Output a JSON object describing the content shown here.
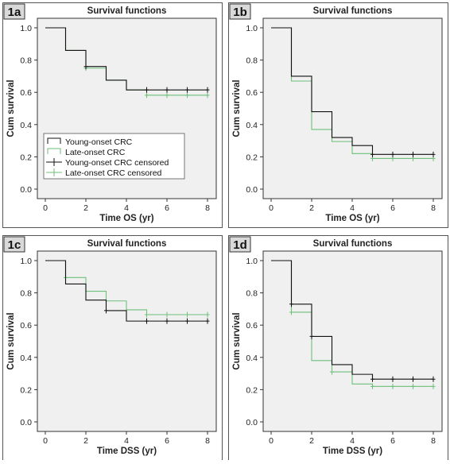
{
  "chart_data": [
    {
      "type": "line",
      "panel_label": "1a",
      "title": "Survival functions",
      "xlabel": "Time OS (yr)",
      "ylabel": "Cum survival",
      "xlim": [
        0,
        8
      ],
      "ylim": [
        0,
        1.0
      ],
      "x_ticks": [
        "0",
        "2",
        "4",
        "6",
        "8"
      ],
      "y_ticks": [
        "0.0",
        "0.2",
        "0.4",
        "0.6",
        "0.8",
        "1.0"
      ],
      "grid": false,
      "legend": {
        "placement": "bottom-left",
        "entries": [
          "Young-onset CRC",
          "Late-onset CRC",
          "Young-onset CRC censored",
          "Late-onset CRC censored"
        ]
      },
      "series": [
        {
          "name": "Young-onset CRC",
          "color": "#111111",
          "steps": [
            [
              0,
              1.0
            ],
            [
              1,
              0.86
            ],
            [
              2,
              0.76
            ],
            [
              3,
              0.675
            ],
            [
              4,
              0.615
            ]
          ],
          "end_x": 8,
          "censored": [
            [
              2,
              0.76
            ],
            [
              5,
              0.615
            ],
            [
              6,
              0.615
            ],
            [
              7,
              0.615
            ],
            [
              8,
              0.615
            ]
          ]
        },
        {
          "name": "Late-onset CRC",
          "color": "#6cc07a",
          "steps": [
            [
              0,
              1.0
            ],
            [
              1,
              0.86
            ],
            [
              2,
              0.75
            ],
            [
              3,
              0.675
            ],
            [
              4,
              0.615
            ],
            [
              5,
              0.582
            ]
          ],
          "end_x": 8,
          "censored": [
            [
              2,
              0.75
            ],
            [
              5,
              0.582
            ],
            [
              6,
              0.582
            ],
            [
              7,
              0.582
            ],
            [
              8,
              0.582
            ]
          ]
        }
      ]
    },
    {
      "type": "line",
      "panel_label": "1b",
      "title": "Survival functions",
      "xlabel": "Time OS (yr)",
      "ylabel": "Cum survival",
      "xlim": [
        0,
        8
      ],
      "ylim": [
        0,
        1.0
      ],
      "x_ticks": [
        "0",
        "2",
        "4",
        "6",
        "8"
      ],
      "y_ticks": [
        "0.0",
        "0.2",
        "0.4",
        "0.6",
        "0.8",
        "1.0"
      ],
      "grid": false,
      "series": [
        {
          "name": "Young-onset CRC",
          "color": "#111111",
          "steps": [
            [
              0,
              1.0
            ],
            [
              1,
              0.7
            ],
            [
              2,
              0.48
            ],
            [
              3,
              0.32
            ],
            [
              4,
              0.27
            ],
            [
              5,
              0.215
            ]
          ],
          "end_x": 8,
          "censored": [
            [
              5,
              0.215
            ],
            [
              6,
              0.215
            ],
            [
              7,
              0.215
            ],
            [
              8,
              0.215
            ]
          ]
        },
        {
          "name": "Late-onset CRC",
          "color": "#6cc07a",
          "steps": [
            [
              0,
              1.0
            ],
            [
              1,
              0.67
            ],
            [
              2,
              0.37
            ],
            [
              3,
              0.295
            ],
            [
              4,
              0.22
            ],
            [
              5,
              0.19
            ]
          ],
          "end_x": 8,
          "censored": [
            [
              5,
              0.19
            ],
            [
              6,
              0.19
            ],
            [
              7,
              0.19
            ],
            [
              8,
              0.19
            ]
          ]
        }
      ]
    },
    {
      "type": "line",
      "panel_label": "1c",
      "title": "Survival functions",
      "xlabel": "Time DSS (yr)",
      "ylabel": "Cum survival",
      "xlim": [
        0,
        8
      ],
      "ylim": [
        0,
        1.0
      ],
      "x_ticks": [
        "0",
        "2",
        "4",
        "6",
        "8"
      ],
      "y_ticks": [
        "0.0",
        "0.2",
        "0.4",
        "0.6",
        "0.8",
        "1.0"
      ],
      "grid": false,
      "series": [
        {
          "name": "Young-onset CRC",
          "color": "#111111",
          "steps": [
            [
              0,
              1.0
            ],
            [
              1,
              0.855
            ],
            [
              2,
              0.755
            ],
            [
              3,
              0.69
            ],
            [
              4,
              0.625
            ]
          ],
          "end_x": 8,
          "censored": [
            [
              3,
              0.69
            ],
            [
              5,
              0.625
            ],
            [
              6,
              0.625
            ],
            [
              7,
              0.625
            ],
            [
              8,
              0.625
            ]
          ]
        },
        {
          "name": "Late-onset CRC",
          "color": "#6cc07a",
          "steps": [
            [
              0,
              1.0
            ],
            [
              1,
              0.895
            ],
            [
              2,
              0.81
            ],
            [
              3,
              0.75
            ],
            [
              4,
              0.695
            ],
            [
              5,
              0.665
            ]
          ],
          "end_x": 8,
          "censored": [
            [
              1,
              0.895
            ],
            [
              5,
              0.665
            ],
            [
              6,
              0.665
            ],
            [
              7,
              0.665
            ],
            [
              8,
              0.665
            ]
          ]
        }
      ]
    },
    {
      "type": "line",
      "panel_label": "1d",
      "title": "Survival functions",
      "xlabel": "Time DSS (yr)",
      "ylabel": "Cum survival",
      "xlim": [
        0,
        8
      ],
      "ylim": [
        0,
        1.0
      ],
      "x_ticks": [
        "0",
        "2",
        "4",
        "6",
        "8"
      ],
      "y_ticks": [
        "0.0",
        "0.2",
        "0.4",
        "0.6",
        "0.8",
        "1.0"
      ],
      "grid": false,
      "series": [
        {
          "name": "Young-onset CRC",
          "color": "#111111",
          "steps": [
            [
              0,
              1.0
            ],
            [
              1,
              0.73
            ],
            [
              2,
              0.53
            ],
            [
              3,
              0.355
            ],
            [
              4,
              0.295
            ],
            [
              5,
              0.265
            ]
          ],
          "end_x": 8,
          "censored": [
            [
              1,
              0.73
            ],
            [
              2,
              0.53
            ],
            [
              5,
              0.265
            ],
            [
              6,
              0.265
            ],
            [
              7,
              0.265
            ],
            [
              8,
              0.265
            ]
          ]
        },
        {
          "name": "Late-onset CRC",
          "color": "#6cc07a",
          "steps": [
            [
              0,
              1.0
            ],
            [
              1,
              0.68
            ],
            [
              2,
              0.38
            ],
            [
              3,
              0.31
            ],
            [
              4,
              0.235
            ],
            [
              5,
              0.22
            ]
          ],
          "end_x": 8,
          "censored": [
            [
              1,
              0.68
            ],
            [
              3,
              0.31
            ],
            [
              5,
              0.22
            ],
            [
              6,
              0.22
            ],
            [
              7,
              0.22
            ],
            [
              8,
              0.22
            ]
          ]
        }
      ]
    }
  ]
}
